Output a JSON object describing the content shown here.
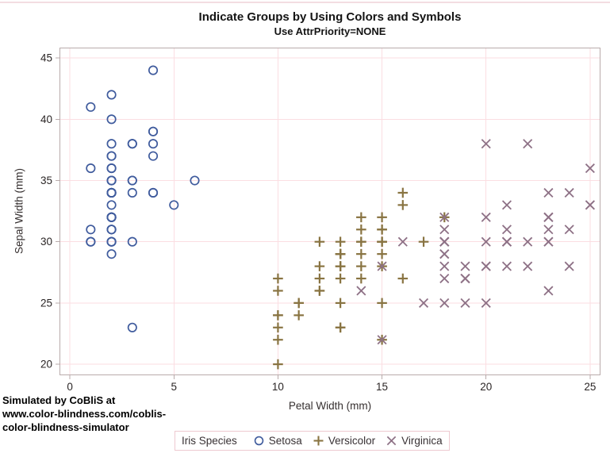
{
  "watermark": {
    "line1": "Simulated by CoBliS at",
    "line2": "www.color-blindness.com/coblis-",
    "line3": "color-blindness-simulator"
  },
  "legend": {
    "title": "Iris Species",
    "entries": [
      {
        "label": "Setosa"
      },
      {
        "label": "Versicolor"
      },
      {
        "label": "Virginica"
      }
    ]
  },
  "chart_data": {
    "type": "scatter",
    "title": "Indicate Groups by Using Colors and Symbols",
    "subtitle": "Use AttrPriority=NONE",
    "xlabel": "Petal Width (mm)",
    "ylabel": "Sepal Width (mm)",
    "xlim": [
      -0.5,
      25.5
    ],
    "ylim": [
      19.1,
      45.85
    ],
    "xticks": [
      0,
      5,
      10,
      15,
      20,
      25
    ],
    "yticks": [
      20,
      25,
      30,
      35,
      40,
      45
    ],
    "grid": true,
    "legend_position": "bottom",
    "series": [
      {
        "name": "Setosa",
        "marker": "circle",
        "color": "#3f5b9d",
        "x": [
          2,
          2,
          2,
          2,
          2,
          4,
          3,
          2,
          2,
          1,
          2,
          2,
          1,
          1,
          2,
          4,
          4,
          3,
          3,
          3,
          2,
          4,
          2,
          5,
          2,
          2,
          4,
          2,
          2,
          2,
          2,
          4,
          1,
          2,
          2,
          2,
          2,
          1,
          2,
          2,
          3,
          3,
          2,
          6,
          4,
          3,
          2,
          2,
          2,
          2
        ],
        "y": [
          35,
          30,
          32,
          31,
          36,
          39,
          34,
          34,
          29,
          31,
          37,
          34,
          30,
          30,
          40,
          44,
          39,
          35,
          38,
          38,
          34,
          37,
          36,
          33,
          34,
          30,
          34,
          35,
          34,
          32,
          31,
          34,
          41,
          42,
          31,
          32,
          35,
          36,
          30,
          34,
          35,
          23,
          32,
          35,
          38,
          30,
          38,
          32,
          37,
          33
        ]
      },
      {
        "name": "Versicolor",
        "marker": "plus",
        "color": "#897442",
        "x": [
          14,
          15,
          15,
          13,
          15,
          13,
          16,
          10,
          13,
          14,
          10,
          15,
          10,
          14,
          13,
          14,
          15,
          10,
          15,
          11,
          18,
          13,
          15,
          12,
          13,
          14,
          14,
          17,
          15,
          10,
          11,
          10,
          12,
          16,
          15,
          16,
          15,
          13,
          13,
          13,
          12,
          14,
          12,
          10,
          13,
          12,
          13,
          13,
          11,
          13
        ],
        "y": [
          32,
          32,
          31,
          23,
          28,
          28,
          33,
          24,
          29,
          27,
          20,
          30,
          22,
          29,
          29,
          31,
          30,
          27,
          22,
          25,
          32,
          28,
          25,
          28,
          29,
          30,
          28,
          30,
          29,
          26,
          24,
          24,
          27,
          27,
          30,
          34,
          31,
          23,
          30,
          25,
          26,
          30,
          26,
          23,
          27,
          30,
          29,
          29,
          25,
          28
        ]
      },
      {
        "name": "Virginica",
        "marker": "x",
        "color": "#8e7186",
        "x": [
          25,
          19,
          21,
          18,
          22,
          21,
          17,
          18,
          18,
          25,
          20,
          19,
          21,
          20,
          24,
          23,
          18,
          22,
          23,
          15,
          23,
          20,
          20,
          18,
          21,
          18,
          18,
          18,
          21,
          16,
          19,
          20,
          22,
          15,
          14,
          23,
          24,
          18,
          18,
          21,
          24,
          23,
          19,
          23,
          25,
          23,
          19,
          20,
          23,
          18
        ],
        "y": [
          33,
          27,
          30,
          29,
          30,
          30,
          25,
          29,
          25,
          36,
          32,
          27,
          30,
          25,
          28,
          32,
          30,
          38,
          26,
          22,
          32,
          28,
          28,
          27,
          33,
          32,
          28,
          30,
          28,
          30,
          28,
          38,
          28,
          28,
          26,
          30,
          34,
          31,
          30,
          31,
          31,
          31,
          27,
          32,
          33,
          30,
          25,
          30,
          34,
          30
        ]
      }
    ]
  },
  "style": {
    "grid_color": "#fbdee2",
    "frame_color": "#b9abab",
    "tick_color": "#b9abab",
    "tick_label_color": "#2b2626",
    "axis_label_color": "#363030",
    "legend_border_color": "#eec9d0",
    "top_border_color": "#f3dde2"
  }
}
